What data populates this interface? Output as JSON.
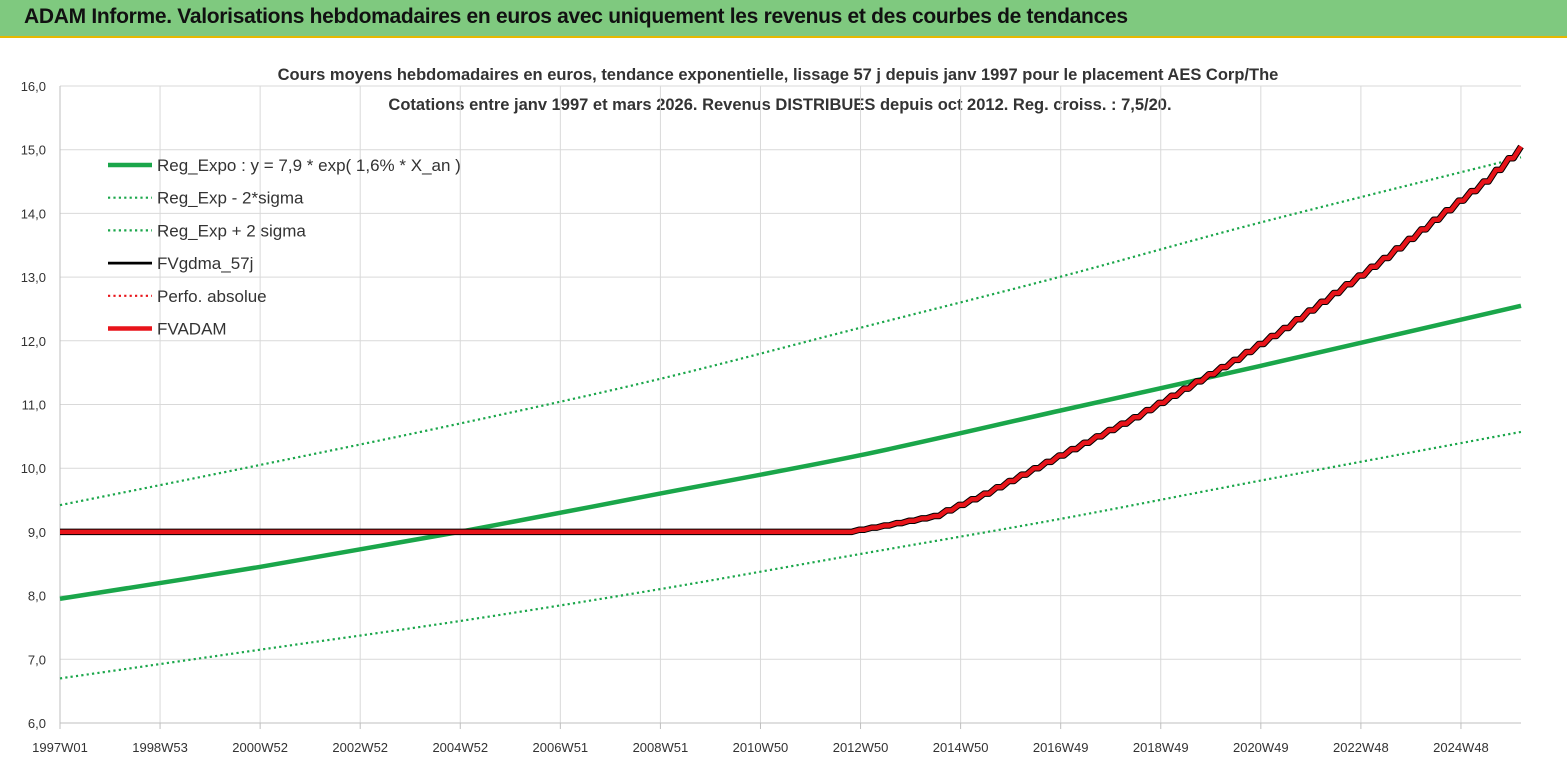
{
  "header": {
    "title": "ADAM Informe. Valorisations hebdomadaires en euros avec uniquement les revenus et des courbes de tendances"
  },
  "colors": {
    "header_bg": "#7fc97f",
    "green": "#1aa64a",
    "red": "#e8141a",
    "black": "#000000"
  },
  "chart_data": {
    "type": "line",
    "title_line1": "Cours moyens hebdomadaires en euros, tendance exponentielle, lissage 57 j depuis janv 1997 pour le placement AES Corp/The",
    "title_line2": "Cotations entre janv 1997 et mars 2026. Revenus DISTRIBUES depuis oct 2012. Reg. croiss. : 7,5/20.",
    "ylim": [
      6.0,
      16.0
    ],
    "y_ticks": [
      "6,0",
      "7,0",
      "8,0",
      "9,0",
      "10,0",
      "11,0",
      "12,0",
      "13,0",
      "14,0",
      "15,0",
      "16,0"
    ],
    "x_tick_labels": [
      "1997W01",
      "1998W53",
      "2000W52",
      "2002W52",
      "2004W52",
      "2006W51",
      "2008W51",
      "2010W50",
      "2012W50",
      "2014W50",
      "2016W49",
      "2018W49",
      "2020W49",
      "2022W48",
      "2024W48"
    ],
    "x_year_range": [
      1997.0,
      2026.25
    ],
    "grid": true,
    "legend_position": "top-left",
    "series": [
      {
        "name": "Reg_Expo : y = 7,9 * exp( 1,6% *  X_an )",
        "style": "solid-thick",
        "color": "#1aa64a",
        "x": [
          1997.0,
          2001.0,
          2005.0,
          2009.0,
          2013.0,
          2017.0,
          2021.0,
          2026.25
        ],
        "y": [
          7.95,
          8.45,
          9.0,
          9.6,
          10.2,
          10.9,
          11.6,
          12.55
        ]
      },
      {
        "name": "Reg_Exp - 2*sigma",
        "style": "dotted",
        "color": "#1aa64a",
        "x": [
          1997.0,
          2001.0,
          2005.0,
          2009.0,
          2013.0,
          2017.0,
          2021.0,
          2026.25
        ],
        "y": [
          6.7,
          7.15,
          7.6,
          8.1,
          8.65,
          9.2,
          9.8,
          10.57
        ]
      },
      {
        "name": "Reg_Exp + 2 sigma",
        "style": "dotted",
        "color": "#1aa64a",
        "x": [
          1997.0,
          2001.0,
          2005.0,
          2009.0,
          2013.0,
          2017.0,
          2021.0,
          2026.25
        ],
        "y": [
          9.42,
          10.05,
          10.7,
          11.4,
          12.2,
          13.0,
          13.85,
          14.88
        ]
      },
      {
        "name": "FVgdma_57j",
        "style": "solid",
        "color": "#000000",
        "x": [
          1997.0,
          2012.75,
          2013.5,
          2014.5,
          2015.5,
          2016.5,
          2017.5,
          2018.5,
          2019.5,
          2020.5,
          2021.5,
          2022.5,
          2023.5,
          2024.5,
          2025.5,
          2026.25
        ],
        "y": [
          9.0,
          9.0,
          9.1,
          9.25,
          9.6,
          10.0,
          10.4,
          10.8,
          11.25,
          11.7,
          12.2,
          12.75,
          13.3,
          13.9,
          14.5,
          15.05
        ]
      },
      {
        "name": "Perfo. absolue",
        "style": "dotted",
        "color": "#e8141a",
        "x": [],
        "y": []
      },
      {
        "name": "FVADAM",
        "style": "solid-thick",
        "color": "#e8141a",
        "x": [
          1997.0,
          2012.75,
          2013.5,
          2014.5,
          2015.5,
          2016.5,
          2017.5,
          2018.5,
          2019.5,
          2020.5,
          2021.5,
          2022.5,
          2023.5,
          2024.5,
          2025.5,
          2026.25
        ],
        "y": [
          9.0,
          9.0,
          9.1,
          9.25,
          9.6,
          10.0,
          10.4,
          10.8,
          11.25,
          11.7,
          12.2,
          12.75,
          13.3,
          13.9,
          14.5,
          15.05
        ]
      }
    ]
  }
}
